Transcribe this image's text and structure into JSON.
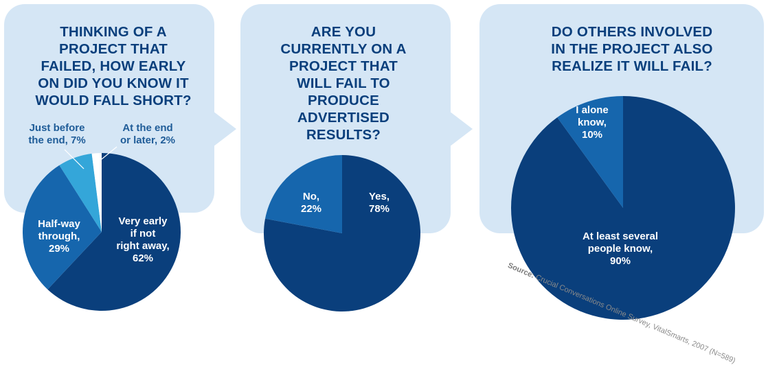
{
  "colors": {
    "panel": "#d5e6f5",
    "dark": "#0a3f7c",
    "mid": "#1666ad",
    "light": "#34a6d9",
    "white": "#ffffff",
    "label_dark": "#1f5c98"
  },
  "panels": [
    {
      "question": [
        "THINKING OF A",
        "PROJECT THAT",
        "FAILED, HOW EARLY",
        "ON DID YOU KNOW IT",
        "WOULD FALL SHORT?"
      ]
    },
    {
      "question": [
        "ARE YOU",
        "CURRENTLY ON A",
        "PROJECT THAT",
        "WILL FAIL TO",
        "PRODUCE",
        "ADVERTISED",
        "RESULTS?"
      ]
    },
    {
      "question": [
        "DO OTHERS INVOLVED",
        "IN THE PROJECT ALSO",
        "REALIZE IT WILL FAIL?"
      ]
    }
  ],
  "chart_data": [
    {
      "type": "pie",
      "title": "THINKING OF A PROJECT THAT FAILED, HOW EARLY ON DID YOU KNOW IT WOULD FALL SHORT?",
      "slices": [
        {
          "label": [
            "Very early",
            "if not",
            "right away,",
            "62%"
          ],
          "value": 62,
          "color": "#0a3f7c"
        },
        {
          "label": [
            "Half-way",
            "through,",
            "29%"
          ],
          "value": 29,
          "color": "#1666ad"
        },
        {
          "label": [
            "Just before",
            "the end, 7%"
          ],
          "value": 7,
          "color": "#34a6d9"
        },
        {
          "label": [
            "At the end",
            "or later, 2%"
          ],
          "value": 2,
          "color": "#ffffff"
        }
      ]
    },
    {
      "type": "pie",
      "title": "ARE YOU CURRENTLY ON A PROJECT THAT WILL FAIL TO PRODUCE ADVERTISED RESULTS?",
      "slices": [
        {
          "label": [
            "Yes,",
            "78%"
          ],
          "value": 78,
          "color": "#0a3f7c"
        },
        {
          "label": [
            "No,",
            "22%"
          ],
          "value": 22,
          "color": "#1666ad"
        }
      ]
    },
    {
      "type": "pie",
      "title": "DO OTHERS INVOLVED IN THE PROJECT ALSO REALIZE IT WILL FAIL?",
      "slices": [
        {
          "label": [
            "At least several",
            "people know,",
            "90%"
          ],
          "value": 90,
          "color": "#0a3f7c"
        },
        {
          "label": [
            "I alone",
            "know,",
            "10%"
          ],
          "value": 10,
          "color": "#1666ad"
        }
      ]
    }
  ],
  "source": {
    "bold": "Source:",
    "text": "Crucial Conversations Online Survey, VitalSmarts, 2007 (N=589)"
  }
}
